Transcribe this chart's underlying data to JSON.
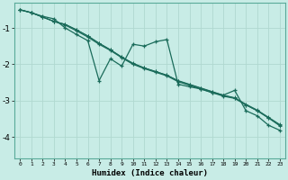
{
  "title": "",
  "xlabel": "Humidex (Indice chaleur)",
  "background_color": "#c8ece6",
  "grid_color": "#b0d8d0",
  "line_color": "#1a6b5a",
  "xlim": [
    -0.5,
    23.5
  ],
  "ylim": [
    -4.6,
    -0.3
  ],
  "yticks": [
    -4,
    -3,
    -2,
    -1
  ],
  "xticks": [
    0,
    1,
    2,
    3,
    4,
    5,
    6,
    7,
    8,
    9,
    10,
    11,
    12,
    13,
    14,
    15,
    16,
    17,
    18,
    19,
    20,
    21,
    22,
    23
  ],
  "series1_x": [
    0,
    1,
    2,
    3,
    4,
    5,
    6,
    7,
    8,
    9,
    10,
    11,
    12,
    13,
    14,
    15,
    16,
    17,
    18,
    19,
    20,
    21,
    22,
    23
  ],
  "series1_y": [
    -0.5,
    -0.58,
    -0.68,
    -0.75,
    -1.0,
    -1.18,
    -1.35,
    -2.45,
    -1.85,
    -2.05,
    -1.45,
    -1.5,
    -1.38,
    -1.32,
    -2.55,
    -2.62,
    -2.68,
    -2.78,
    -2.85,
    -2.72,
    -3.28,
    -3.42,
    -3.68,
    -3.82
  ],
  "series2_x": [
    0,
    1,
    2,
    3,
    4,
    5,
    6,
    7,
    8,
    9,
    10,
    11,
    12,
    13,
    14,
    15,
    16,
    17,
    18,
    19,
    20,
    21,
    22,
    23
  ],
  "series2_y": [
    -0.5,
    -0.58,
    -0.7,
    -0.82,
    -0.92,
    -1.08,
    -1.25,
    -1.45,
    -1.62,
    -1.82,
    -2.0,
    -2.12,
    -2.22,
    -2.32,
    -2.48,
    -2.58,
    -2.68,
    -2.78,
    -2.88,
    -2.94,
    -3.12,
    -3.28,
    -3.48,
    -3.68
  ],
  "series3_x": [
    0,
    1,
    2,
    3,
    4,
    5,
    6,
    7,
    8,
    9,
    10,
    11,
    12,
    13,
    14,
    15,
    16,
    17,
    18,
    19,
    20,
    21,
    22,
    23
  ],
  "series3_y": [
    -0.5,
    -0.58,
    -0.7,
    -0.82,
    -0.9,
    -1.05,
    -1.22,
    -1.42,
    -1.6,
    -1.8,
    -1.97,
    -2.1,
    -2.2,
    -2.3,
    -2.45,
    -2.55,
    -2.65,
    -2.75,
    -2.85,
    -2.92,
    -3.1,
    -3.26,
    -3.46,
    -3.66
  ],
  "series4_x": [
    0,
    1,
    2,
    3,
    4,
    5,
    6,
    7,
    8,
    9,
    10,
    11,
    12,
    13,
    14,
    15,
    16,
    17,
    18,
    19,
    20,
    21,
    22,
    23
  ],
  "series4_y": [
    -0.5,
    -0.58,
    -0.7,
    -0.82,
    -0.9,
    -1.05,
    -1.22,
    -1.42,
    -1.6,
    -1.8,
    -1.98,
    -2.1,
    -2.2,
    -2.3,
    -2.46,
    -2.56,
    -2.66,
    -2.76,
    -2.86,
    -2.93,
    -3.12,
    -3.28,
    -3.48,
    -3.7
  ]
}
